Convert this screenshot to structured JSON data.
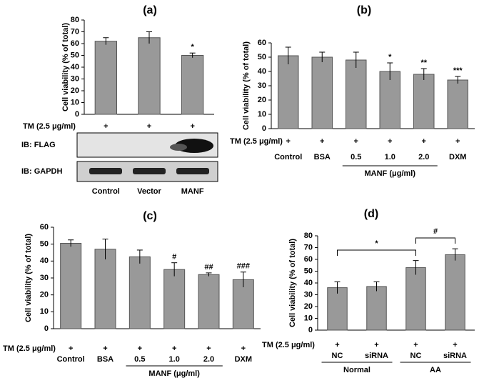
{
  "chart_data": [
    {
      "type": "bar",
      "title": "(a)",
      "y_label": "Cell viability (% of total)",
      "categories": [
        "Control",
        "Vector",
        "MANF"
      ],
      "values": [
        62,
        65,
        50
      ],
      "errors": [
        3,
        5,
        2
      ],
      "annotations": [
        null,
        null,
        "*"
      ],
      "color": "#999999",
      "ylim": [
        0,
        80
      ],
      "yticks": [
        0,
        10,
        20,
        30,
        40,
        50,
        60,
        70,
        80
      ],
      "treatment": {
        "label": "TM (2.5 μg/ml)",
        "marks": [
          "+",
          "+",
          "+"
        ]
      },
      "blots": [
        "IB: FLAG",
        "IB: GAPDH"
      ]
    },
    {
      "type": "bar",
      "title": "(b)",
      "y_label": "Cell viability (% of total)",
      "categories": [
        "Control",
        "BSA",
        "0.5",
        "1.0",
        "2.0",
        "DXM"
      ],
      "values": [
        51,
        50,
        48,
        40,
        38,
        34
      ],
      "errors": [
        6,
        3.5,
        5.5,
        6,
        4,
        2.5
      ],
      "annotations": [
        null,
        null,
        null,
        "*",
        "**",
        "***"
      ],
      "color": "#999999",
      "ylim": [
        0,
        60
      ],
      "yticks": [
        0,
        10,
        20,
        30,
        40,
        50,
        60
      ],
      "treatment": {
        "label": "TM (2.5 μg/ml)",
        "marks": [
          "+",
          "+",
          "+",
          "+",
          "+",
          "+"
        ]
      },
      "groups": [
        "MANF (μg/ml)"
      ]
    },
    {
      "type": "bar",
      "title": "(c)",
      "y_label": "Cell viability (% of total)",
      "categories": [
        "Control",
        "BSA",
        "0.5",
        "1.0",
        "2.0",
        "DXM"
      ],
      "values": [
        50.5,
        47,
        42.5,
        35,
        32,
        29
      ],
      "errors": [
        2,
        6,
        4,
        4,
        1,
        4.5
      ],
      "annotations": [
        null,
        null,
        null,
        "#",
        "##",
        "###"
      ],
      "color": "#999999",
      "ylim": [
        0,
        60
      ],
      "yticks": [
        0,
        10,
        20,
        30,
        40,
        50,
        60
      ],
      "treatment": {
        "label": "TM (2.5 μg/ml)",
        "marks": [
          "+",
          "+",
          "+",
          "+",
          "+",
          "+"
        ]
      },
      "groups": [
        "MANF (μg/ml)"
      ]
    },
    {
      "type": "bar",
      "title": "(d)",
      "y_label": "Cell viability (% of total)",
      "categories": [
        "NC",
        "siRNA",
        "NC",
        "siRNA"
      ],
      "values": [
        36,
        37,
        53,
        64
      ],
      "errors": [
        5,
        4,
        6,
        5
      ],
      "color": "#999999",
      "ylim": [
        0,
        80
      ],
      "yticks": [
        0,
        10,
        20,
        30,
        40,
        50,
        60,
        70,
        80
      ],
      "treatment": {
        "label": "TM (2.5 μg/ml)",
        "marks": [
          "+",
          "+",
          "+",
          "+"
        ]
      },
      "groups": [
        "Normal",
        "AA"
      ],
      "comparisons": [
        "*",
        "#"
      ]
    }
  ]
}
